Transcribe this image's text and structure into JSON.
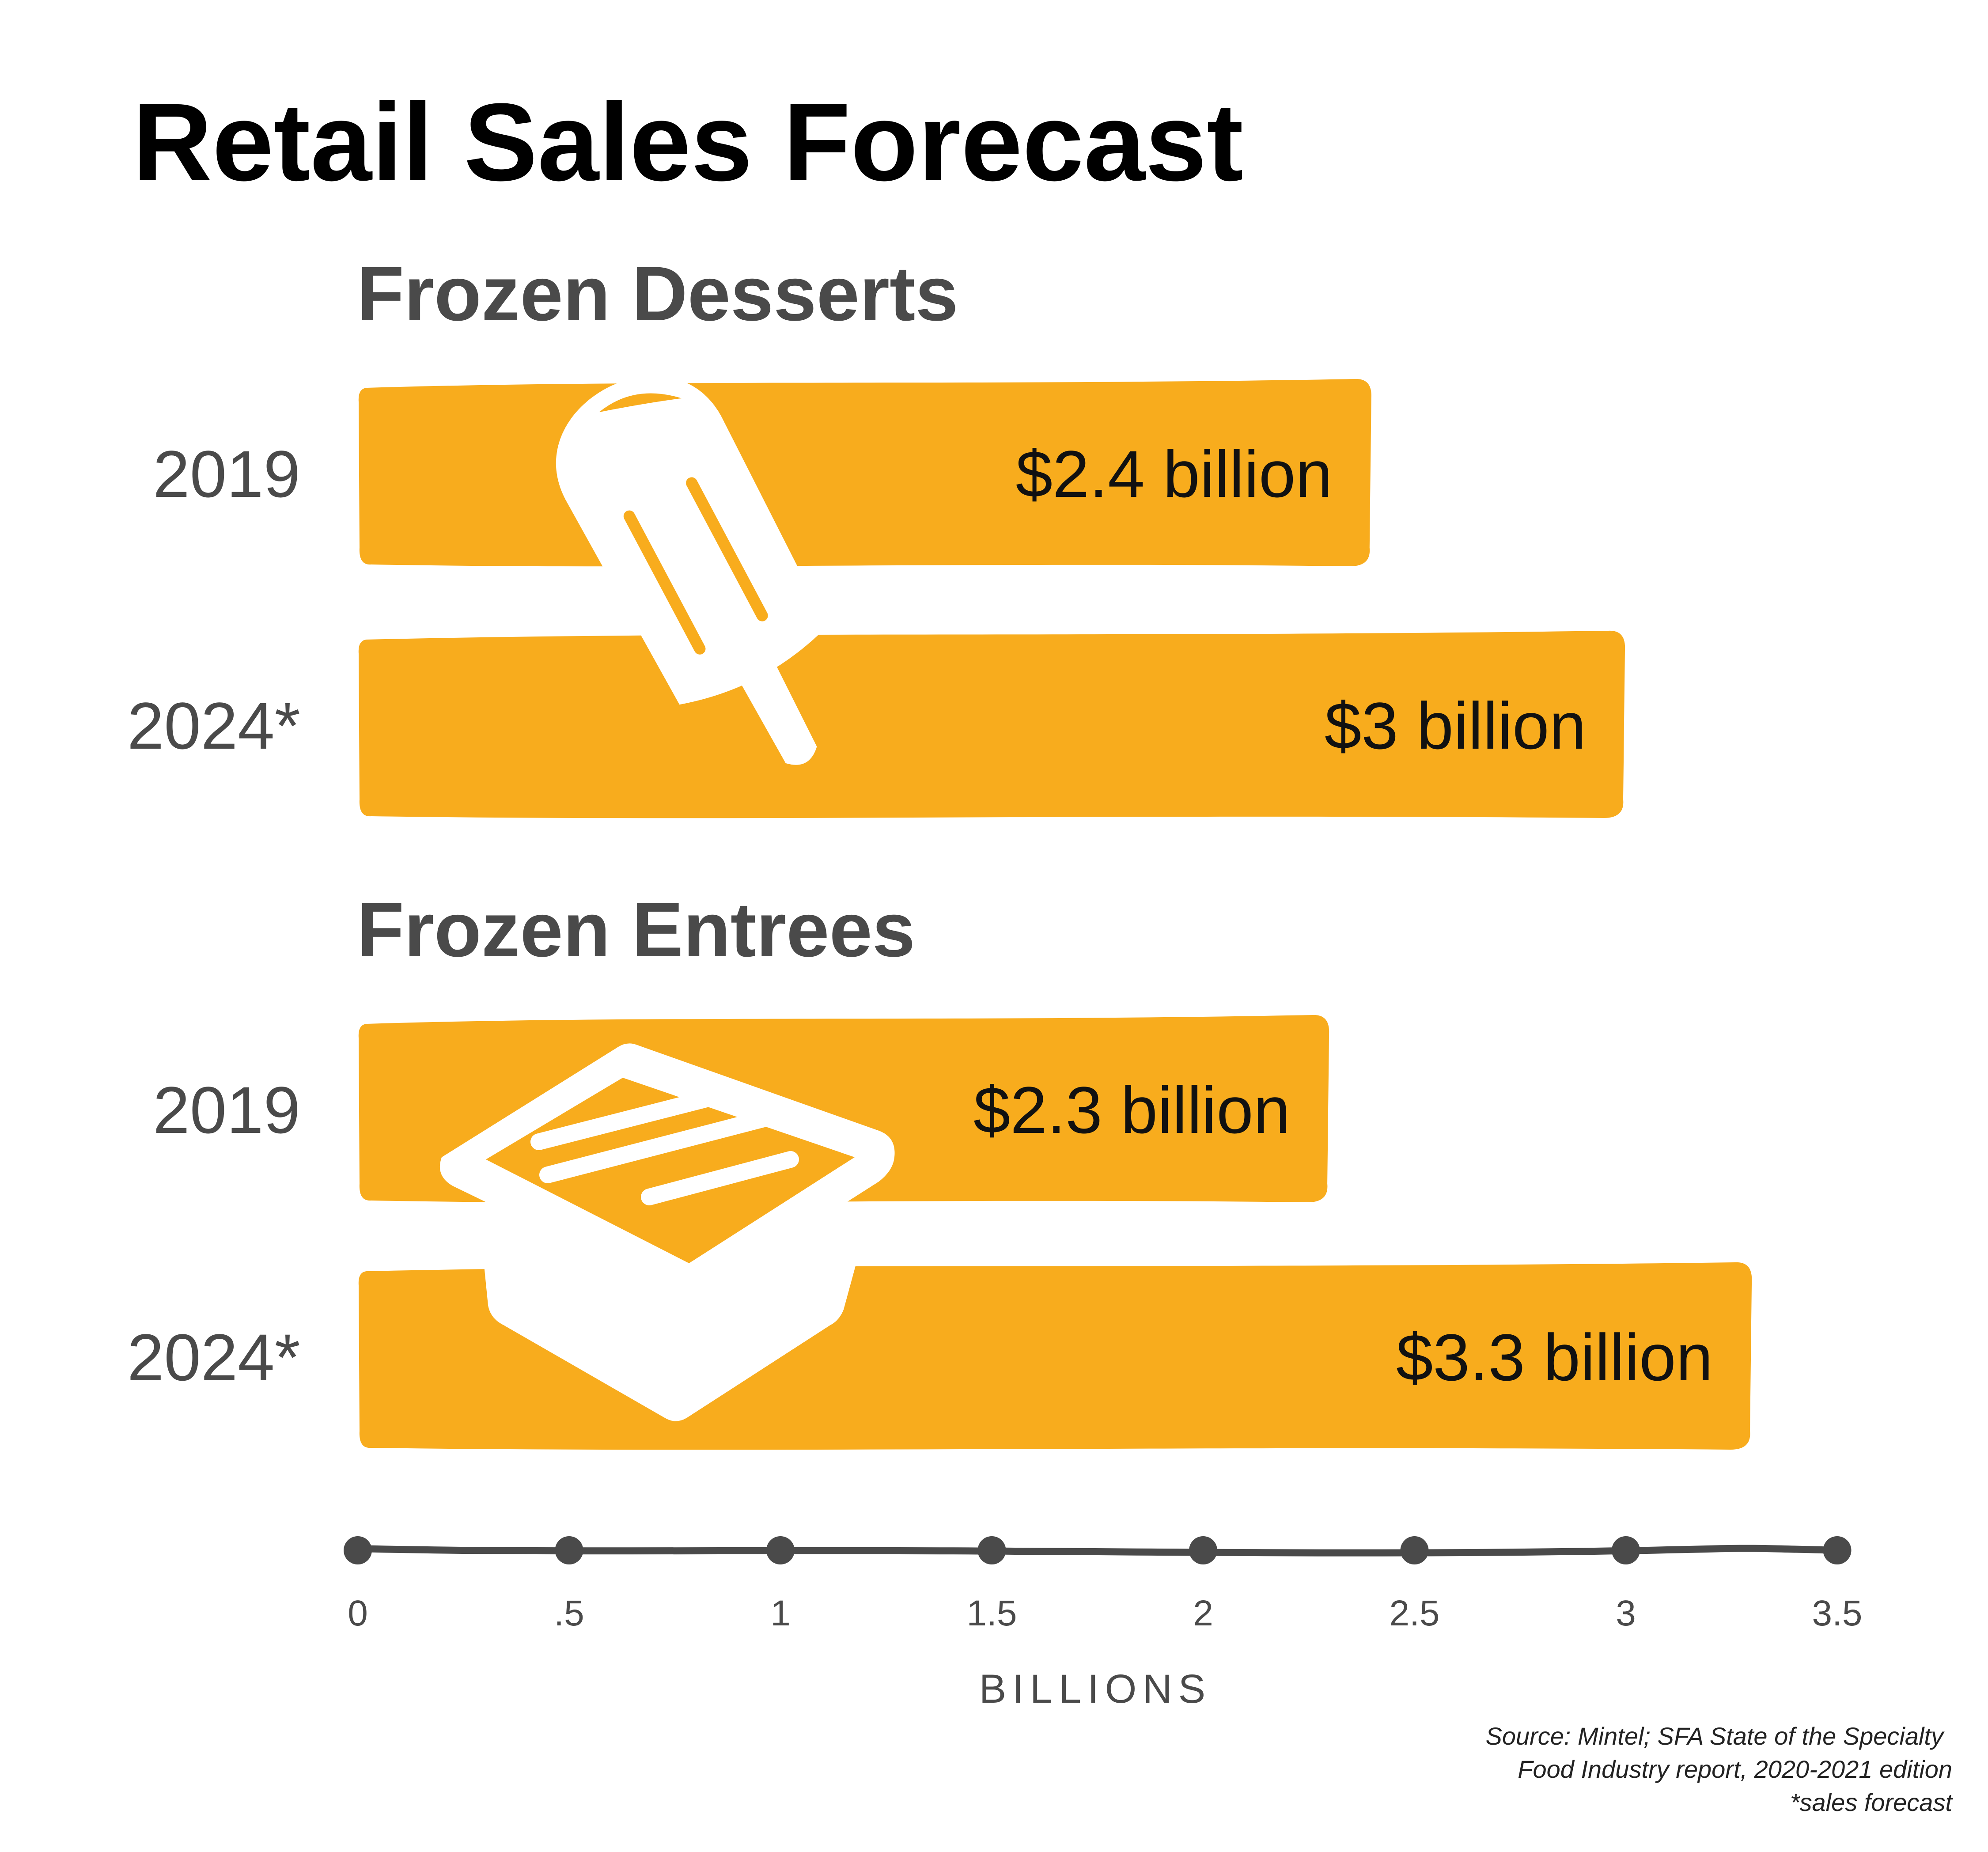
{
  "chart_data": {
    "type": "bar",
    "orientation": "horizontal",
    "title": "Retail Sales Forecast",
    "xlabel": "BILLIONS",
    "xlim": [
      0,
      3.5
    ],
    "x_ticks": [
      {
        "value": 0,
        "label": "0"
      },
      {
        "value": 0.5,
        "label": ".5"
      },
      {
        "value": 1,
        "label": "1"
      },
      {
        "value": 1.5,
        "label": "1.5"
      },
      {
        "value": 2,
        "label": "2"
      },
      {
        "value": 2.5,
        "label": "2.5"
      },
      {
        "value": 3,
        "label": "3"
      },
      {
        "value": 3.5,
        "label": "3.5"
      }
    ],
    "groups": [
      {
        "name": "Frozen Desserts",
        "icon": "popsicle-icon",
        "bars": [
          {
            "category": "2019",
            "value": 2.4,
            "label": "$2.4 billion"
          },
          {
            "category": "2024*",
            "value": 3.0,
            "label": "$3 billion"
          }
        ]
      },
      {
        "name": "Frozen Entrees",
        "icon": "frozen-meal-tray-icon",
        "bars": [
          {
            "category": "2019",
            "value": 2.3,
            "label": "$2.3 billion"
          },
          {
            "category": "2024*",
            "value": 3.3,
            "label": "$3.3 billion"
          }
        ]
      }
    ],
    "grid": false,
    "legend": "none"
  },
  "footnotes": {
    "source_line1": "Source: Mintel; SFA State of the Specialty",
    "source_line2": "Food Industry report, 2020-2021 edition",
    "forecast_note": "*sales forecast"
  },
  "colors": {
    "bar": "#F8AC1D",
    "icon": "#FFFFFF",
    "axis": "#4A4A4A",
    "title": "#000000",
    "group_heading": "#4A4A4A"
  }
}
